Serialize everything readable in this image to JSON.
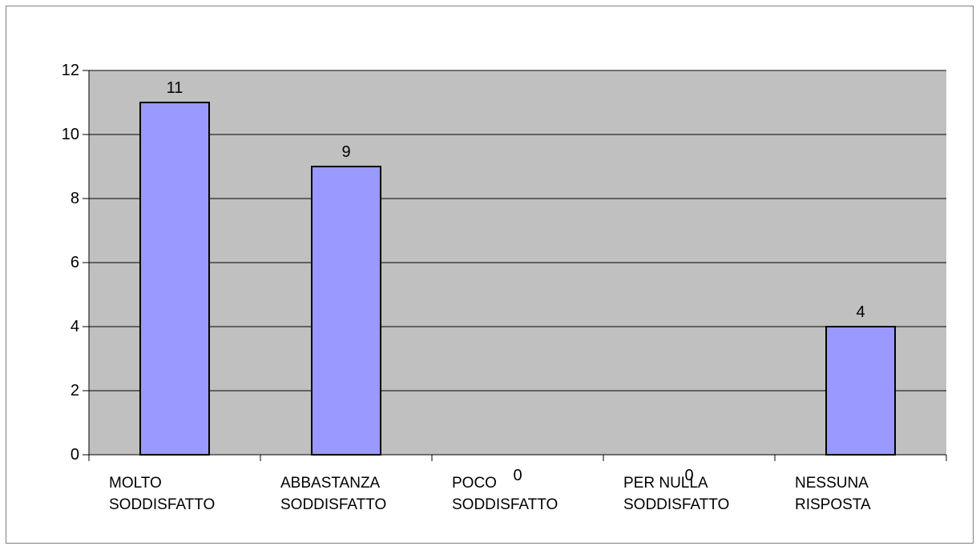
{
  "chart_data": {
    "type": "bar",
    "categories": [
      [
        "MOLTO",
        "SODDISFATTO"
      ],
      [
        "ABBASTANZA",
        "SODDISFATTO"
      ],
      [
        "POCO",
        "SODDISFATTO"
      ],
      [
        "PER NULLA",
        "SODDISFATTO"
      ],
      [
        "NESSUNA",
        "RISPOSTA"
      ]
    ],
    "values": [
      11,
      9,
      0,
      0,
      4
    ],
    "data_labels": [
      "11",
      "9",
      "0",
      "0",
      "4"
    ],
    "ylim": [
      0,
      12
    ],
    "yticks": [
      0,
      2,
      4,
      6,
      8,
      10,
      12
    ],
    "title": "",
    "xlabel": "",
    "ylabel": "",
    "grid": true,
    "legend": "none",
    "colors": {
      "bar": "#9999ff",
      "plot_background": "#c0c0c0",
      "gridline": "#000000"
    }
  }
}
